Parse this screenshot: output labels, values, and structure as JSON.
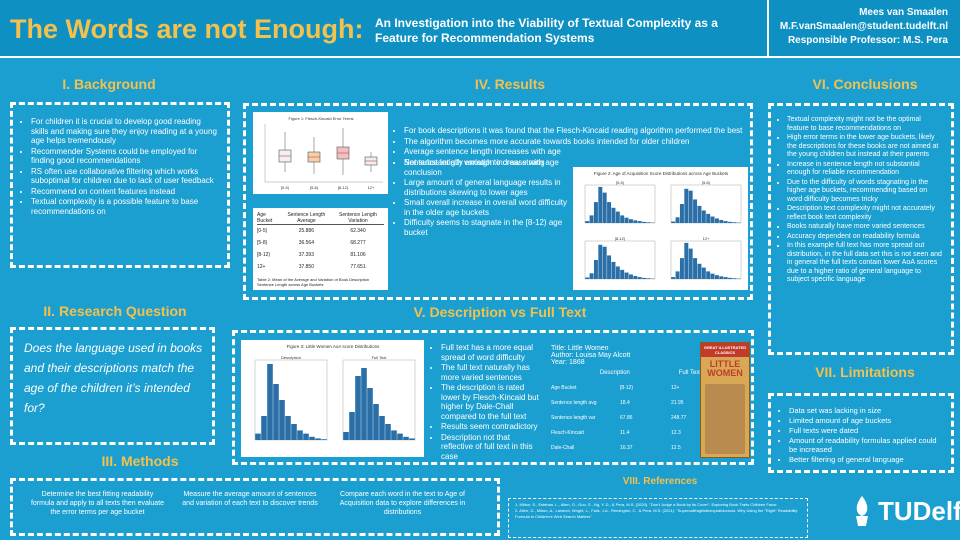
{
  "header": {
    "title": "The Words are not Enough:",
    "subtitle": "An Investigation into the Viability of Textual Complexity as a Feature for Recommendation Systems",
    "author": "Mees van Smaalen",
    "email": "M.F.vanSmaalen@student.tudelft.nl",
    "professor": "Responsible Professor: M.S. Pera"
  },
  "background": {
    "title": "I. Background",
    "items": [
      "For children it is crucial to develop good reading skills and making sure they enjoy reading at a young age helps tremendously",
      "Recommender Systems could be employed for finding good recommendations",
      "RS often use collaborative filtering which works suboptimal for children due to lack of user feedback",
      "Recommend on content features instead",
      "Textual complexity is a possible feature to base recommendations on"
    ]
  },
  "research": {
    "title": "II. Research Question",
    "question": "Does the language used in books and their descriptions match the age of the children it’s intended for?"
  },
  "methods": {
    "title": "III. Methods",
    "items": [
      "Determine the best fitting readability formula and apply to all texts then evaluate the error terms per age bucket",
      "Measure the average amount of sentences and variation of each text to discover trends",
      "Compare each word in the text to Age of Acquisition data to explore differences in distributions"
    ]
  },
  "results": {
    "title": "IV. Results",
    "items": [
      "For book descriptions it was found that the Flesch-Kincaid reading algorithm performed the best",
      "The algorithm becomes more accurate towards books intended for older children",
      "Average sentence length increases with age",
      "Sentence length variation increase with age",
      "Not substantially enough to draw strong conclusion",
      "Large amount of general language results in distributions skewing to lower ages",
      "Small overall increase in overall word difficulty in the older age buckets",
      "Difficulty seems to stagnate in the [8-12) age bucket"
    ],
    "fig1_title": "Figure 1: Flesch-Kincaid Error Terms",
    "table_headers": [
      "Age Bucket",
      "Sentence Length Average",
      "Sentence Length Variation"
    ],
    "table_rows": [
      [
        "[0-5)",
        "25.886",
        "62.340"
      ],
      [
        "[5-8)",
        "36.564",
        "68.277"
      ],
      [
        "[8-12)",
        "37.393",
        "81.106"
      ],
      [
        "12+",
        "37.850",
        "77.651"
      ]
    ],
    "table_caption": "Table 2: Mean of the Average and Variation of Book Description Sentence Length across Age Buckets",
    "fig2_title": "Figure 2: Age of Acquisition Score Distributions across Age Buckets",
    "fig2_panels": [
      "[0-5)",
      "[5-8)",
      "[8-12)",
      "12+"
    ]
  },
  "description": {
    "title": "V. Description vs Full Text",
    "fig3_title": "Figure 3: Little Women AoA score Distributions",
    "fig3_panels": [
      "Description",
      "Full Text"
    ],
    "items": [
      "Full text has a more equal spread of word difficulty",
      "The full text naturally has more varied sentences",
      "The description is rated lower by Flesch-Kincaid but higher by Dale-Chall compared to the full text",
      "Results seem contradictory",
      "Description not that reflective of full text in this case"
    ],
    "book_title": "Title: Little Women",
    "book_author": "Author: Louisa May Alcott",
    "book_year": "Year: 1868",
    "info_headers": [
      "Age Bucket",
      "Description",
      "Full Text"
    ],
    "info_rows": [
      [
        "Age Bucket",
        "[8-12)",
        "12+"
      ],
      [
        "Sentence length avg",
        "18.4",
        "21.95"
      ],
      [
        "Sentence length var",
        "67.86",
        "248.77"
      ],
      [
        "Flesch-Kincaid",
        "11.4",
        "12.3"
      ],
      [
        "Dale-Chall",
        "16.37",
        "12.5"
      ]
    ],
    "cover_top": "GREAT ILLUSTRATED CLASSICS",
    "cover_title": "LITTLE WOMEN"
  },
  "conclusions": {
    "title": "VI. Conclusions",
    "items": [
      "Textual complexity might not be the optimal feature to base recommendations on",
      "High error terms in the lower age buckets, likely the descriptions for these books are not aimed at the young children but instead at their parents",
      "Increase in sentence length not substantial enough for reliable recommendation",
      "Due to the difficulty of words stagnating in the higher age buckets, recommending based on word difficulty becomes tricky",
      "Description text complexity might not accurately reflect book text complexity",
      "Books naturally have more varied sentences",
      "Accuracy dependent on readability formula",
      "In this example full text has more spread out distribution, in the full data set this is not seen and in general the full texts contain lower AoA scores due to a higher ratio of general language to subject specific language"
    ]
  },
  "limitations": {
    "title": "VII. Limitations",
    "items": [
      "Data set was lacking in size",
      "Limited amount of age buckets",
      "Full texts were dated",
      "Amount of readability formulas applied could be increased",
      "Better filtering of general language"
    ]
  },
  "references": {
    "title": "VIII. References",
    "items": [
      "Milton, S., Esteban, L., Allen, G., Guo, S., Ng, Y. D., & Pera, M.S. (2020). \"Don't Judge a Book by its Cover\": Exploring Book Traits Children Favor.",
      "Allen, G., Milton, A., Landoni, Wright, L., Fails, J.A., Remington, C., & Pera, M.S. (2021). \"Supercalifragilisticexpialidocious: Why Using the \"Right\" Readability Formula in Children's Web Search Matters\""
    ]
  },
  "logo": {
    "text": "TUDelft"
  },
  "colors": {
    "background": "#1a9fd0",
    "accent": "#f2c14e",
    "bar": "#2a6fa8"
  }
}
